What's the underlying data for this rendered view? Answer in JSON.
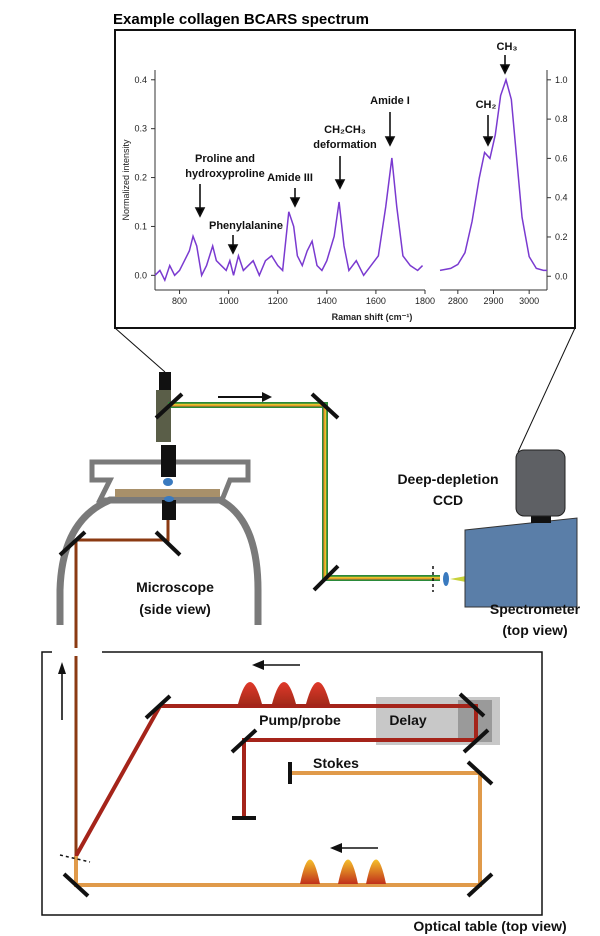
{
  "title": "Example collagen BCARS spectrum",
  "spectrum": {
    "x_label": "Raman shift (cm⁻¹)",
    "y_label": "Normalized intensity",
    "left": {
      "xlim": [
        700,
        1800
      ],
      "ylim": [
        -0.03,
        0.42
      ],
      "xticks": [
        800,
        1000,
        1200,
        1400,
        1600,
        1800
      ],
      "yticks": [
        {
          "value": 0,
          "label": "0.0"
        },
        0.1,
        0.2,
        0.3,
        0.4
      ],
      "x": [
        700,
        720,
        740,
        760,
        780,
        800,
        820,
        840,
        855,
        870,
        890,
        910,
        935,
        950,
        970,
        990,
        1005,
        1020,
        1040,
        1060,
        1080,
        1100,
        1125,
        1150,
        1175,
        1200,
        1220,
        1245,
        1265,
        1280,
        1300,
        1320,
        1340,
        1360,
        1380,
        1400,
        1430,
        1450,
        1470,
        1490,
        1520,
        1550,
        1580,
        1610,
        1640,
        1665,
        1685,
        1710,
        1740,
        1770,
        1790
      ],
      "values": [
        0.0,
        0.01,
        -0.01,
        0.02,
        0.0,
        0.01,
        0.03,
        0.05,
        0.08,
        0.06,
        0.0,
        0.02,
        0.06,
        0.03,
        0.02,
        0.01,
        0.03,
        0.0,
        0.04,
        0.01,
        0.02,
        0.03,
        0.0,
        0.03,
        0.04,
        0.02,
        0.01,
        0.13,
        0.1,
        0.04,
        0.02,
        0.05,
        0.07,
        0.02,
        0.01,
        0.03,
        0.08,
        0.15,
        0.06,
        0.01,
        0.03,
        0.0,
        0.02,
        0.04,
        0.14,
        0.24,
        0.14,
        0.04,
        0.02,
        0.01,
        0.02
      ]
    },
    "right": {
      "xlim": [
        2750,
        3050
      ],
      "ylim": [
        -0.07,
        1.05
      ],
      "xticks": [
        2800,
        2900,
        3000
      ],
      "yticks": [
        {
          "value": 0,
          "label": "0.0"
        },
        0.2,
        0.4,
        0.6,
        0.8,
        {
          "value": 1,
          "label": "1.0"
        }
      ],
      "x": [
        2750,
        2780,
        2800,
        2820,
        2840,
        2860,
        2875,
        2890,
        2905,
        2920,
        2935,
        2950,
        2965,
        2980,
        3000,
        3020,
        3040,
        3050
      ],
      "values": [
        0.03,
        0.04,
        0.06,
        0.12,
        0.28,
        0.5,
        0.63,
        0.6,
        0.72,
        0.92,
        1.0,
        0.9,
        0.6,
        0.3,
        0.1,
        0.04,
        0.03,
        0.03
      ]
    },
    "annotations": [
      "Proline and",
      "hydroxyproline",
      "Phenylalanine",
      "Amide III",
      "CH₂CH₃",
      "deformation",
      "Amide I",
      "CH₂",
      "CH₃"
    ]
  },
  "labels": {
    "ccd": [
      "Deep-depletion",
      "CCD"
    ],
    "microscope": [
      "Microscope",
      "(side view)"
    ],
    "spectrometer": [
      "Spectrometer",
      "(top view)"
    ],
    "pump_probe": "Pump/probe",
    "delay": "Delay",
    "stokes": "Stokes",
    "optical_table": "Optical table (top view)"
  }
}
